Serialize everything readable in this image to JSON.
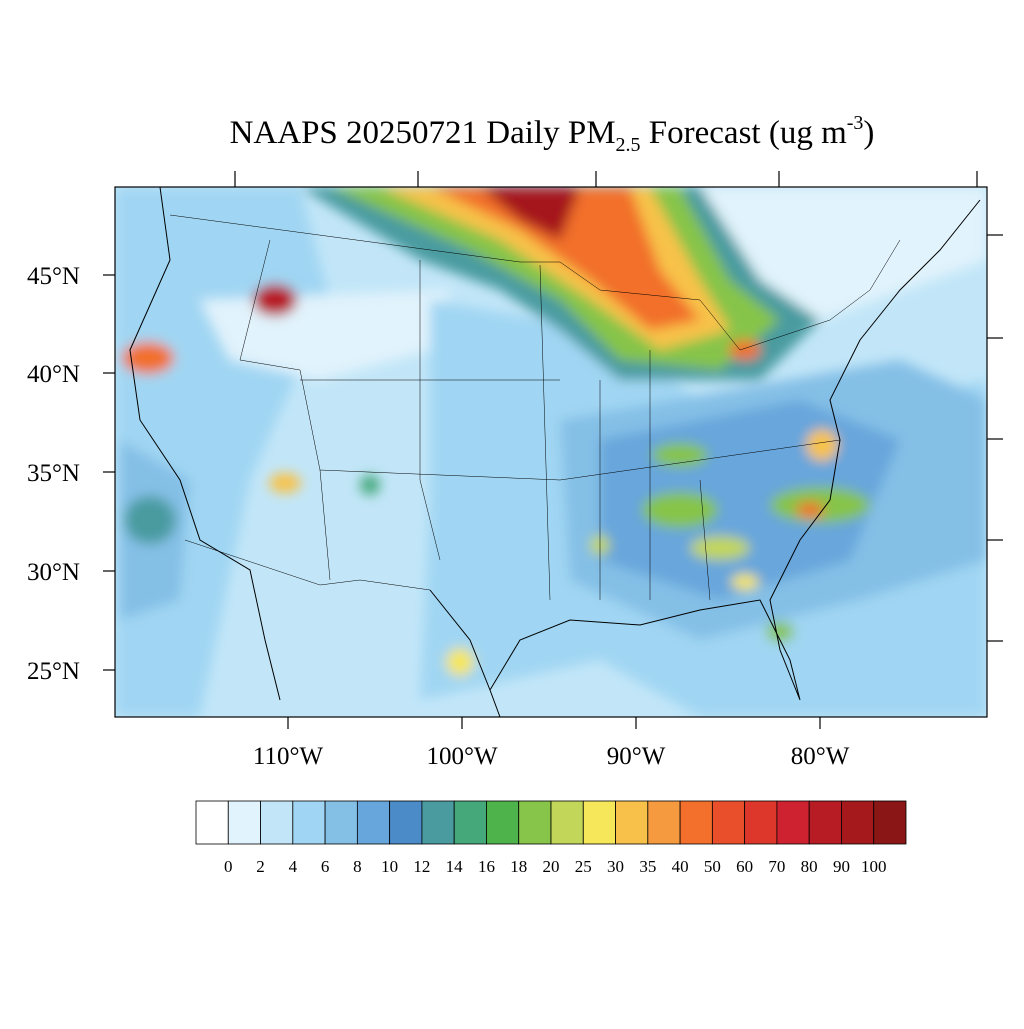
{
  "title": {
    "main": "NAAPS 20250721 Daily PM",
    "subscript": "2.5",
    "rest": " Forecast (ug m",
    "superscript": "-3",
    "close": ")"
  },
  "latitude_labels": [
    "45°N",
    "40°N",
    "35°N",
    "30°N",
    "25°N"
  ],
  "longitude_labels": [
    "110°W",
    "100°W",
    "90°W",
    "80°W"
  ],
  "colorbar": {
    "levels": [
      0,
      2,
      4,
      6,
      8,
      10,
      12,
      14,
      16,
      18,
      20,
      25,
      30,
      35,
      40,
      50,
      60,
      70,
      80,
      90,
      100
    ],
    "colors": [
      "#ffffff",
      "#e1f3fc",
      "#c2e6f8",
      "#a0d6f3",
      "#84bfe6",
      "#67a6dc",
      "#4a8bc8",
      "#4a9ba0",
      "#44a87a",
      "#4db34a",
      "#86c44a",
      "#c2d65a",
      "#f6e65a",
      "#f8c24a",
      "#f59a3e",
      "#f26f2c",
      "#e84f2a",
      "#dc372a",
      "#cf2230",
      "#b71c25",
      "#a5191d",
      "#8b1616"
    ]
  }
}
